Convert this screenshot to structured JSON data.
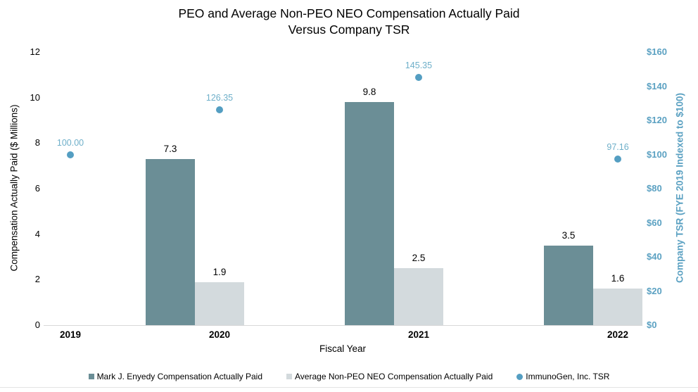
{
  "title": {
    "line1": "PEO and Average Non-PEO NEO Compensation Actually Paid",
    "line2": "Versus Company TSR"
  },
  "chart_data": {
    "type": "combo",
    "categories": [
      "2019",
      "2020",
      "2021",
      "2022"
    ],
    "series": [
      {
        "name": "Mark J. Enyedy Compensation Actually Paid",
        "type": "bar",
        "axis": "left",
        "color": "#6b8e96",
        "values": [
          null,
          7.3,
          9.8,
          3.5
        ],
        "labels": [
          "",
          "7.3",
          "9.8",
          "3.5"
        ]
      },
      {
        "name": "Average Non-PEO NEO Compensation Actually Paid",
        "type": "bar",
        "axis": "left",
        "color": "#d3dadd",
        "values": [
          null,
          1.9,
          2.5,
          1.6
        ],
        "labels": [
          "",
          "1.9",
          "2.5",
          "1.6"
        ]
      },
      {
        "name": "ImmunoGen, Inc. TSR",
        "type": "scatter",
        "axis": "right",
        "color": "#549ec2",
        "label_color": "#6eafc9",
        "values": [
          100.0,
          126.35,
          145.35,
          97.16
        ],
        "labels": [
          "100.00",
          "126.35",
          "145.35",
          "97.16"
        ]
      }
    ],
    "xlabel": "Fiscal Year",
    "left_axis": {
      "label": "Compensation Actually Paid ($ Millions)",
      "min": 0,
      "max": 12,
      "step": 2,
      "ticks": [
        "0",
        "2",
        "4",
        "6",
        "8",
        "10",
        "12"
      ]
    },
    "right_axis": {
      "label": "Company TSR (FYE 2019 Indexed to $100)",
      "min": 0,
      "max": 160,
      "step": 20,
      "ticks": [
        "$0",
        "$20",
        "$40",
        "$60",
        "$80",
        "$100",
        "$120",
        "$140",
        "$160"
      ],
      "color": "#5ba1c2"
    },
    "grid": false,
    "legend_position": "bottom"
  }
}
